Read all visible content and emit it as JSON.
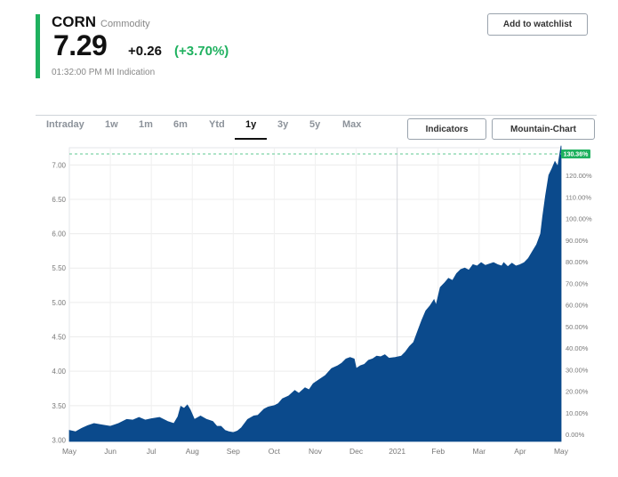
{
  "quote": {
    "symbol": "CORN",
    "category": "Commodity",
    "price": "7.29",
    "change": "+0.26",
    "change_pct": "(+3.70%)",
    "timestamp": "01:32:00 PM MI Indication",
    "accent_color": "#1fb15f"
  },
  "actions": {
    "watchlist_label": "Add to watchlist",
    "indicators_label": "Indicators",
    "chart_type_label": "Mountain-Chart"
  },
  "tabs": [
    {
      "label": "Intraday"
    },
    {
      "label": "1w"
    },
    {
      "label": "1m"
    },
    {
      "label": "6m"
    },
    {
      "label": "Ytd"
    },
    {
      "label": "1y",
      "active": true
    },
    {
      "label": "3y"
    },
    {
      "label": "5y"
    },
    {
      "label": "Max"
    }
  ],
  "chart_data": {
    "type": "area",
    "fill_color": "#0b4a8c",
    "current_label": "130.36%",
    "x_labels": [
      "May",
      "Jun",
      "Jul",
      "Aug",
      "Sep",
      "Oct",
      "Nov",
      "Dec",
      "2021",
      "Feb",
      "Mar",
      "Apr",
      "May"
    ],
    "y_left_ticks": [
      "3.00",
      "3.50",
      "4.00",
      "4.50",
      "5.00",
      "5.50",
      "6.00",
      "6.50",
      "7.00"
    ],
    "y_right_ticks": [
      "0.00%",
      "10.00%",
      "20.00%",
      "30.00%",
      "40.00%",
      "50.00%",
      "60.00%",
      "70.00%",
      "80.00%",
      "90.00%",
      "100.00%",
      "110.00%",
      "120.00%"
    ],
    "ylim": [
      2.98,
      7.25
    ],
    "x_range": [
      0,
      12
    ],
    "grid": true,
    "points": [
      [
        0,
        3.14
      ],
      [
        0.15,
        3.12
      ],
      [
        0.3,
        3.17
      ],
      [
        0.45,
        3.21
      ],
      [
        0.6,
        3.24
      ],
      [
        0.8,
        3.22
      ],
      [
        1.0,
        3.2
      ],
      [
        1.2,
        3.24
      ],
      [
        1.4,
        3.3
      ],
      [
        1.55,
        3.29
      ],
      [
        1.7,
        3.33
      ],
      [
        1.85,
        3.29
      ],
      [
        2.0,
        3.31
      ],
      [
        2.2,
        3.33
      ],
      [
        2.4,
        3.27
      ],
      [
        2.55,
        3.24
      ],
      [
        2.65,
        3.34
      ],
      [
        2.72,
        3.49
      ],
      [
        2.8,
        3.46
      ],
      [
        2.88,
        3.51
      ],
      [
        2.95,
        3.44
      ],
      [
        3.05,
        3.3
      ],
      [
        3.2,
        3.35
      ],
      [
        3.35,
        3.3
      ],
      [
        3.5,
        3.27
      ],
      [
        3.6,
        3.2
      ],
      [
        3.7,
        3.2
      ],
      [
        3.8,
        3.14
      ],
      [
        3.9,
        3.12
      ],
      [
        4.0,
        3.11
      ],
      [
        4.1,
        3.13
      ],
      [
        4.2,
        3.18
      ],
      [
        4.35,
        3.3
      ],
      [
        4.5,
        3.35
      ],
      [
        4.6,
        3.36
      ],
      [
        4.75,
        3.45
      ],
      [
        4.85,
        3.48
      ],
      [
        5.0,
        3.5
      ],
      [
        5.1,
        3.53
      ],
      [
        5.2,
        3.6
      ],
      [
        5.35,
        3.64
      ],
      [
        5.5,
        3.72
      ],
      [
        5.6,
        3.68
      ],
      [
        5.75,
        3.76
      ],
      [
        5.85,
        3.73
      ],
      [
        5.95,
        3.82
      ],
      [
        6.1,
        3.88
      ],
      [
        6.25,
        3.94
      ],
      [
        6.4,
        4.04
      ],
      [
        6.55,
        4.08
      ],
      [
        6.65,
        4.12
      ],
      [
        6.75,
        4.18
      ],
      [
        6.85,
        4.2
      ],
      [
        6.95,
        4.18
      ],
      [
        7.0,
        4.04
      ],
      [
        7.1,
        4.08
      ],
      [
        7.2,
        4.1
      ],
      [
        7.3,
        4.16
      ],
      [
        7.4,
        4.18
      ],
      [
        7.5,
        4.22
      ],
      [
        7.6,
        4.21
      ],
      [
        7.7,
        4.24
      ],
      [
        7.8,
        4.19
      ],
      [
        7.95,
        4.2
      ],
      [
        8.1,
        4.22
      ],
      [
        8.2,
        4.28
      ],
      [
        8.3,
        4.36
      ],
      [
        8.4,
        4.42
      ],
      [
        8.5,
        4.58
      ],
      [
        8.6,
        4.74
      ],
      [
        8.7,
        4.88
      ],
      [
        8.8,
        4.95
      ],
      [
        8.9,
        5.04
      ],
      [
        8.95,
        4.96
      ],
      [
        9.05,
        5.22
      ],
      [
        9.15,
        5.28
      ],
      [
        9.25,
        5.35
      ],
      [
        9.35,
        5.32
      ],
      [
        9.45,
        5.42
      ],
      [
        9.55,
        5.48
      ],
      [
        9.65,
        5.5
      ],
      [
        9.75,
        5.47
      ],
      [
        9.85,
        5.55
      ],
      [
        9.95,
        5.53
      ],
      [
        10.05,
        5.58
      ],
      [
        10.15,
        5.54
      ],
      [
        10.25,
        5.56
      ],
      [
        10.35,
        5.58
      ],
      [
        10.45,
        5.55
      ],
      [
        10.55,
        5.53
      ],
      [
        10.6,
        5.58
      ],
      [
        10.7,
        5.52
      ],
      [
        10.8,
        5.57
      ],
      [
        10.9,
        5.53
      ],
      [
        11.0,
        5.55
      ],
      [
        11.1,
        5.58
      ],
      [
        11.2,
        5.64
      ],
      [
        11.3,
        5.74
      ],
      [
        11.4,
        5.84
      ],
      [
        11.5,
        6.0
      ],
      [
        11.55,
        6.25
      ],
      [
        11.62,
        6.55
      ],
      [
        11.7,
        6.85
      ],
      [
        11.78,
        6.95
      ],
      [
        11.85,
        7.05
      ],
      [
        11.92,
        6.98
      ],
      [
        12.0,
        7.28
      ]
    ]
  }
}
